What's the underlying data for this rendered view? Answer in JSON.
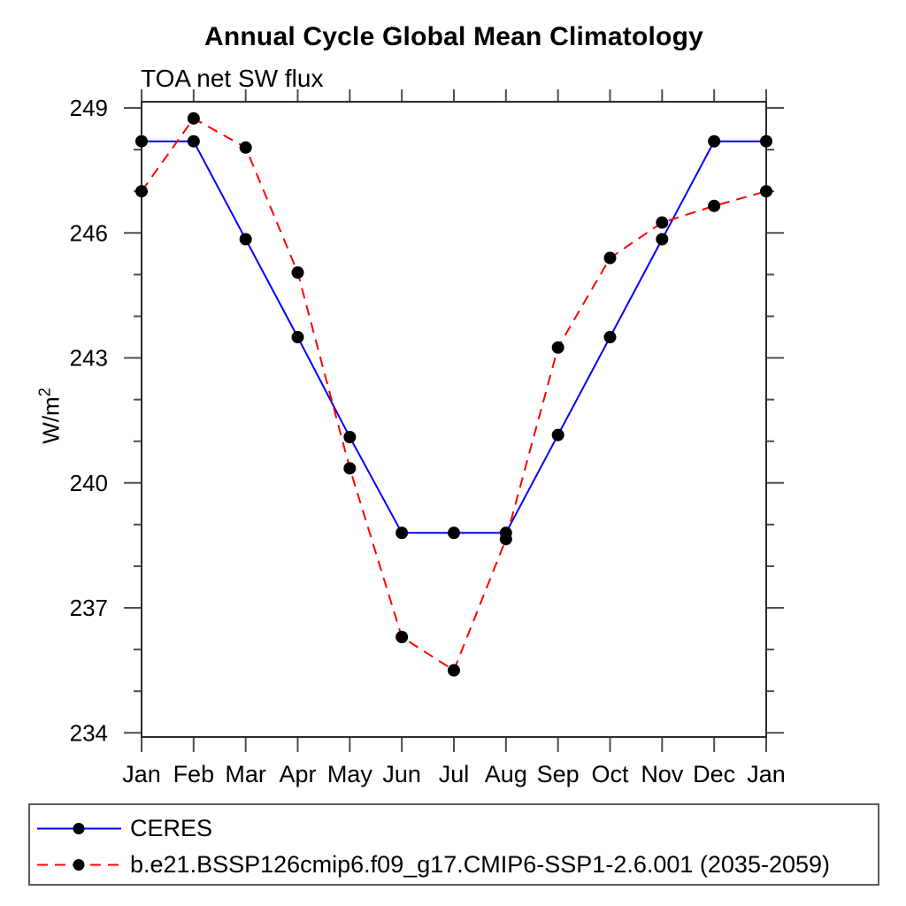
{
  "chart_data": {
    "type": "line",
    "title": "Annual Cycle Global Mean Climatology",
    "subtitle": "TOA net SW flux",
    "ylabel": {
      "base": "W/m",
      "exp": "2"
    },
    "categories": [
      "Jan",
      "Feb",
      "Mar",
      "Apr",
      "May",
      "Jun",
      "Jul",
      "Aug",
      "Sep",
      "Oct",
      "Nov",
      "Dec",
      "Jan"
    ],
    "y_axis": {
      "major_ticks": [
        234,
        237,
        240,
        243,
        246,
        249
      ],
      "minor_tick_step": 1,
      "range_shown": [
        233.9,
        249.15
      ]
    },
    "grid": false,
    "legend_position": "bottom",
    "marker": {
      "shape": "circle",
      "color": "#000000"
    },
    "series": [
      {
        "name": "CERES",
        "color": "#0000ff",
        "line_style": "solid",
        "values": [
          248.2,
          248.2,
          245.85,
          243.5,
          241.1,
          238.8,
          238.8,
          238.8,
          241.15,
          243.5,
          245.85,
          248.2,
          248.2
        ]
      },
      {
        "name": "b.e21.BSSP126cmip6.f09_g17.CMIP6-SSP1-2.6.001 (2035-2059)",
        "color": "#ff0000",
        "line_style": "dashed",
        "values": [
          247.0,
          248.75,
          248.05,
          245.05,
          240.35,
          236.3,
          235.5,
          238.65,
          243.25,
          245.4,
          246.25,
          246.65,
          247.0
        ]
      }
    ]
  }
}
